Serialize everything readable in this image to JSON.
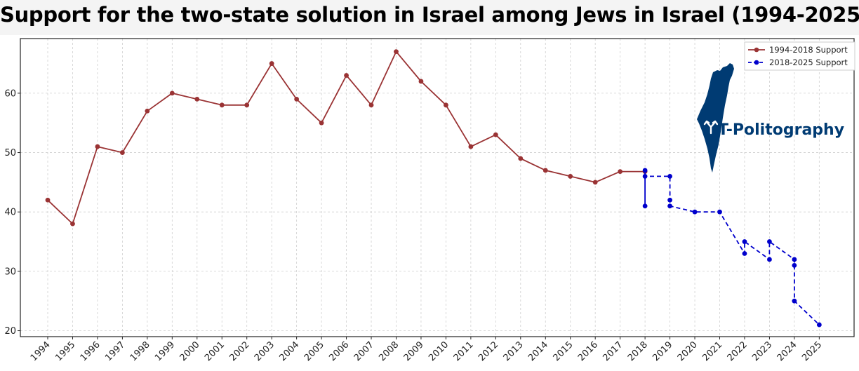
{
  "chart_data": {
    "type": "line",
    "title": "Support for the two-state solution in Israel among Jews in Israel (1994-2025)",
    "xlabel": "",
    "ylabel": "",
    "xlim": [
      1992.9,
      2026.4
    ],
    "ylim": [
      19,
      69.2
    ],
    "x_ticks": [
      1994,
      1995,
      1996,
      1997,
      1998,
      1999,
      2000,
      2001,
      2002,
      2003,
      2004,
      2005,
      2006,
      2007,
      2008,
      2009,
      2010,
      2011,
      2012,
      2013,
      2014,
      2015,
      2016,
      2017,
      2018,
      2019,
      2020,
      2021,
      2022,
      2023,
      2024,
      2025
    ],
    "y_ticks": [
      20,
      30,
      40,
      50,
      60
    ],
    "grid": true,
    "legend_position": "top-right",
    "series": [
      {
        "name": "1994-2018 Support",
        "color": "#9a3334",
        "line_style": "solid",
        "marker": "circle",
        "x": [
          1994,
          1995,
          1996,
          1997,
          1998,
          1999,
          2000,
          2001,
          2002,
          2003,
          2004,
          2005,
          2006,
          2007,
          2008,
          2009,
          2010,
          2011,
          2012,
          2013,
          2014,
          2015,
          2016,
          2017,
          2018
        ],
        "y": [
          42,
          38,
          51,
          50,
          57,
          60,
          59,
          58,
          58,
          65,
          59,
          55,
          63,
          58,
          67,
          62,
          58,
          51,
          53,
          49,
          47,
          46,
          45,
          46.8,
          46.8
        ]
      },
      {
        "name": "2018-2025 Support",
        "color": "#0000cc",
        "line_style": "dashed",
        "marker": "circle",
        "x": [
          2018,
          2018,
          2018,
          2019,
          2019,
          2019,
          2020,
          2021,
          2022,
          2022,
          2023,
          2023,
          2024,
          2024,
          2024,
          2025
        ],
        "y": [
          47,
          41,
          46,
          46,
          42,
          41,
          40,
          40,
          33,
          35,
          32,
          35,
          32,
          31,
          25,
          21
        ]
      }
    ],
    "logo": {
      "text": "T-Politography",
      "color": "#003b73",
      "icon": "israel-map-silhouette-with-split-arrow-icon"
    }
  }
}
